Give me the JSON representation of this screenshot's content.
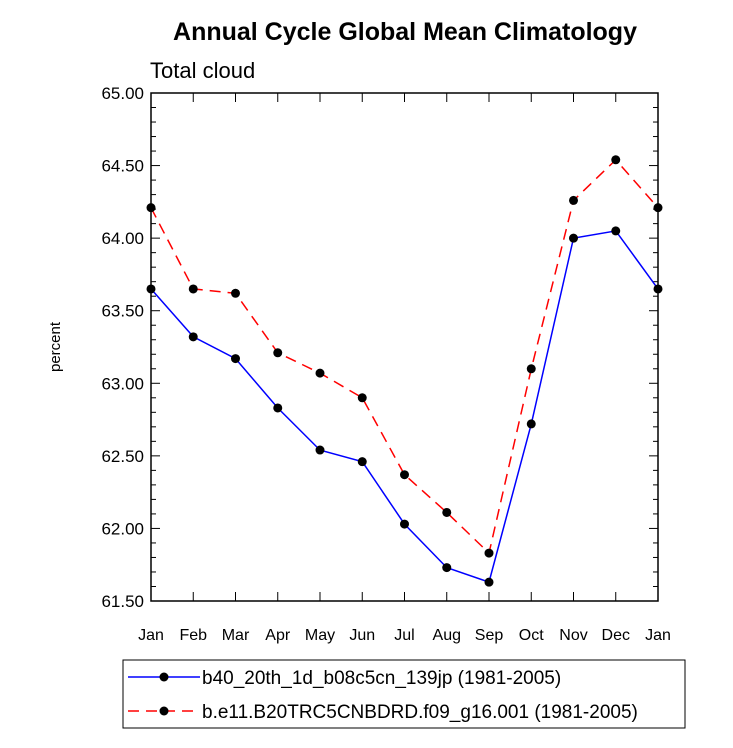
{
  "chart_data": {
    "type": "line",
    "title": "Annual Cycle Global Mean Climatology",
    "subtitle": "Total cloud",
    "ylabel": "percent",
    "xlabel": "",
    "categories": [
      "Jan",
      "Feb",
      "Mar",
      "Apr",
      "May",
      "Jun",
      "Jul",
      "Aug",
      "Sep",
      "Oct",
      "Nov",
      "Dec",
      "Jan"
    ],
    "ylim": [
      61.5,
      65.0
    ],
    "yticks": [
      "61.50",
      "62.00",
      "62.50",
      "63.00",
      "63.50",
      "64.00",
      "64.50",
      "65.00"
    ],
    "series": [
      {
        "name": "b40_20th_1d_b08c5cn_139jp (1981-2005)",
        "color": "#0000ff",
        "dash": "solid",
        "values": [
          63.65,
          63.32,
          63.17,
          62.83,
          62.54,
          62.46,
          62.03,
          61.73,
          61.63,
          62.72,
          64.0,
          64.05,
          63.65
        ]
      },
      {
        "name": "b.e11.B20TRC5CNBDRD.f09_g16.001 (1981-2005)",
        "color": "#ff0000",
        "dash": "dashed",
        "values": [
          64.21,
          63.65,
          63.62,
          63.21,
          63.07,
          62.9,
          62.37,
          62.11,
          61.83,
          63.1,
          64.26,
          64.54,
          64.21
        ]
      }
    ],
    "legend_position": "bottom"
  }
}
